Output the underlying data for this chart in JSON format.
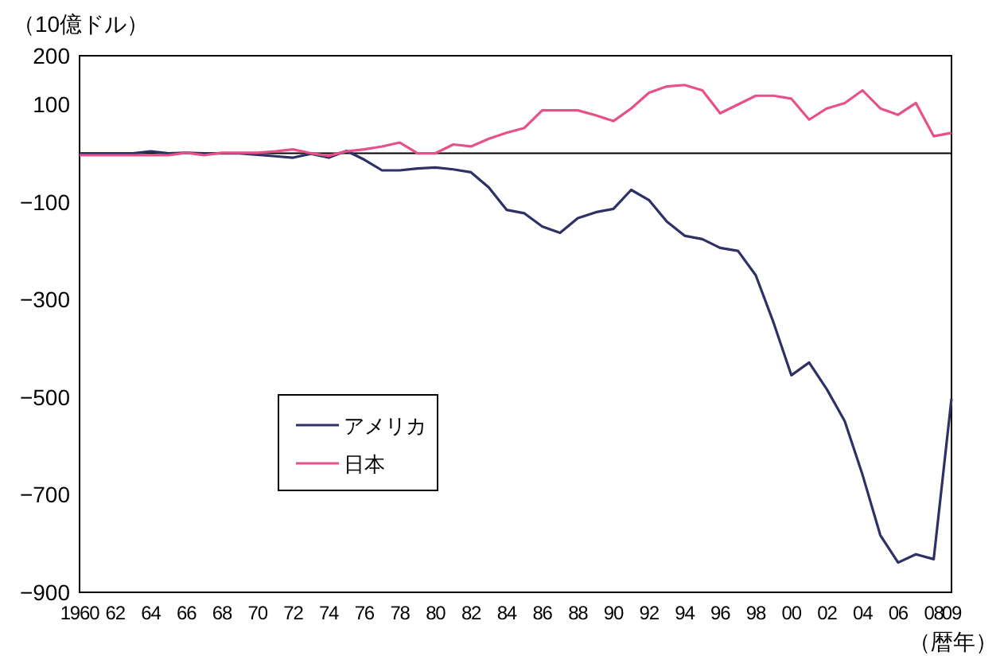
{
  "chart_data": {
    "type": "line",
    "ylabel": "（10億ドル）",
    "xlabel": "（暦年）",
    "x": [
      1960,
      1961,
      1962,
      1963,
      1964,
      1965,
      1966,
      1967,
      1968,
      1969,
      1970,
      1971,
      1972,
      1973,
      1974,
      1975,
      1976,
      1977,
      1978,
      1979,
      1980,
      1981,
      1982,
      1983,
      1984,
      1985,
      1986,
      1987,
      1988,
      1989,
      1990,
      1991,
      1992,
      1993,
      1994,
      1995,
      1996,
      1997,
      1998,
      1999,
      2000,
      2001,
      2002,
      2003,
      2004,
      2005,
      2006,
      2007,
      2008,
      2009
    ],
    "series": [
      {
        "name": "アメリカ",
        "color": "#2e3066",
        "values": [
          0,
          0,
          0,
          0,
          4,
          0,
          1,
          0,
          0,
          0,
          -3,
          -6,
          -9,
          -1,
          -9,
          5,
          -13,
          -35,
          -35,
          -31,
          -29,
          -33,
          -39,
          -70,
          -116,
          -123,
          -150,
          -163,
          -133,
          -121,
          -114,
          -75,
          -96,
          -140,
          -169,
          -176,
          -194,
          -200,
          -250,
          -347,
          -455,
          -429,
          -484,
          -549,
          -659,
          -783,
          -839,
          -822,
          -832,
          -503
        ]
      },
      {
        "name": "日本",
        "color": "#e8508a",
        "values": [
          -4,
          -4,
          -4,
          -4,
          -4,
          -4,
          1,
          -4,
          1,
          1,
          1,
          4,
          8,
          0,
          -5,
          4,
          8,
          14,
          22,
          0,
          0,
          18,
          14,
          30,
          42,
          52,
          88,
          88,
          88,
          78,
          66,
          92,
          124,
          137,
          140,
          129,
          82,
          100,
          118,
          118,
          112,
          69,
          92,
          103,
          129,
          92,
          79,
          103,
          35,
          42
        ]
      }
    ],
    "xlim": [
      1960,
      2009
    ],
    "ylim": [
      -900,
      200
    ],
    "xticks": [
      1960,
      {
        "value": 1962,
        "label": "62"
      },
      {
        "value": 1964,
        "label": "64"
      },
      {
        "value": 1966,
        "label": "66"
      },
      {
        "value": 1968,
        "label": "68"
      },
      {
        "value": 1970,
        "label": "70"
      },
      {
        "value": 1972,
        "label": "72"
      },
      {
        "value": 1974,
        "label": "74"
      },
      {
        "value": 1976,
        "label": "76"
      },
      {
        "value": 1978,
        "label": "78"
      },
      {
        "value": 1980,
        "label": "80"
      },
      {
        "value": 1982,
        "label": "82"
      },
      {
        "value": 1984,
        "label": "84"
      },
      {
        "value": 1986,
        "label": "86"
      },
      {
        "value": 1988,
        "label": "88"
      },
      {
        "value": 1990,
        "label": "90"
      },
      {
        "value": 1992,
        "label": "92"
      },
      {
        "value": 1994,
        "label": "94"
      },
      {
        "value": 1996,
        "label": "96"
      },
      {
        "value": 1998,
        "label": "98"
      },
      {
        "value": 2000,
        "label": "00"
      },
      {
        "value": 2002,
        "label": "02"
      },
      {
        "value": 2004,
        "label": "04"
      },
      {
        "value": 2006,
        "label": "06"
      },
      {
        "value": 2008,
        "label": "08"
      },
      {
        "value": 2009,
        "label": "09"
      }
    ],
    "yticks": [
      200,
      100,
      -100,
      -300,
      -500,
      -700,
      -900
    ],
    "ref_lines": [
      {
        "axis": "y",
        "value": 0,
        "color": "#000000"
      }
    ],
    "legend": "left",
    "grid": false,
    "marker": "none",
    "line_style": "solid"
  }
}
